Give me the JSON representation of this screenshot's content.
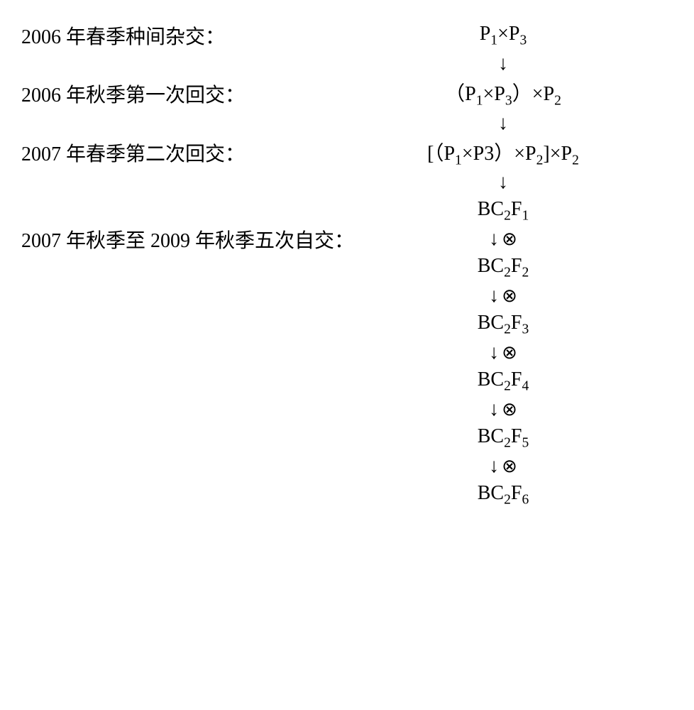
{
  "diagram": {
    "type": "flowchart",
    "background_color": "#ffffff",
    "text_color": "#000000",
    "label_font_family": "SimSun, serif",
    "formula_font_family": "Times New Roman, serif",
    "label_fontsize": 28,
    "formula_fontsize": 28,
    "sub_fontsize_ratio": 0.7,
    "arrow_glyph": "↓",
    "self_cross_glyph": "⊗",
    "steps": [
      {
        "label": "2006 年春季种间杂交：",
        "formula_parts": [
          "P",
          "1",
          "×P",
          "3"
        ],
        "formula_sub_flags": [
          false,
          true,
          false,
          true
        ]
      },
      {
        "label": "2006 年秋季第一次回交：",
        "formula_parts": [
          "（P",
          "1",
          "×P",
          "3",
          "）×P",
          "2"
        ],
        "formula_sub_flags": [
          false,
          true,
          false,
          true,
          false,
          true
        ]
      },
      {
        "label": "2007 年春季第二次回交：",
        "formula_parts": [
          "[（P",
          "1",
          "×P3）×P",
          "2",
          "]×P",
          "2"
        ],
        "formula_sub_flags": [
          false,
          true,
          false,
          true,
          false,
          true
        ]
      }
    ],
    "self_cross_label": "2007 年秋季至 2009 年秋季五次自交：",
    "bc_generations": [
      {
        "prefix": "BC",
        "sub1": "2",
        "mid": "F",
        "sub2": "1"
      },
      {
        "prefix": "BC",
        "sub1": "2",
        "mid": "F",
        "sub2": "2"
      },
      {
        "prefix": "BC",
        "sub1": "2",
        "mid": "F",
        "sub2": "3"
      },
      {
        "prefix": "BC",
        "sub1": "2",
        "mid": "F",
        "sub2": "4"
      },
      {
        "prefix": "BC",
        "sub1": "2",
        "mid": "F",
        "sub2": "5"
      },
      {
        "prefix": "BC",
        "sub1": "2",
        "mid": "F",
        "sub2": "6"
      }
    ]
  }
}
